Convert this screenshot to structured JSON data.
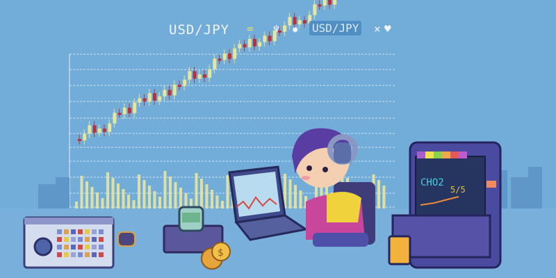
{
  "chart": {
    "title": "USD/JPY",
    "badge": "USD/JPY",
    "colors": {
      "background": "#72acd8",
      "up": "#e6e79a",
      "down": "#b8323c",
      "grid": "#e9f1f8",
      "volume": "#e8e6a0"
    }
  },
  "arcade": {
    "screen_text": "CHO2",
    "screen_value": "5/5"
  },
  "icons": [
    "equals-icon",
    "plant-icon",
    "gear-icon",
    "close-icon",
    "heart-icon"
  ]
}
